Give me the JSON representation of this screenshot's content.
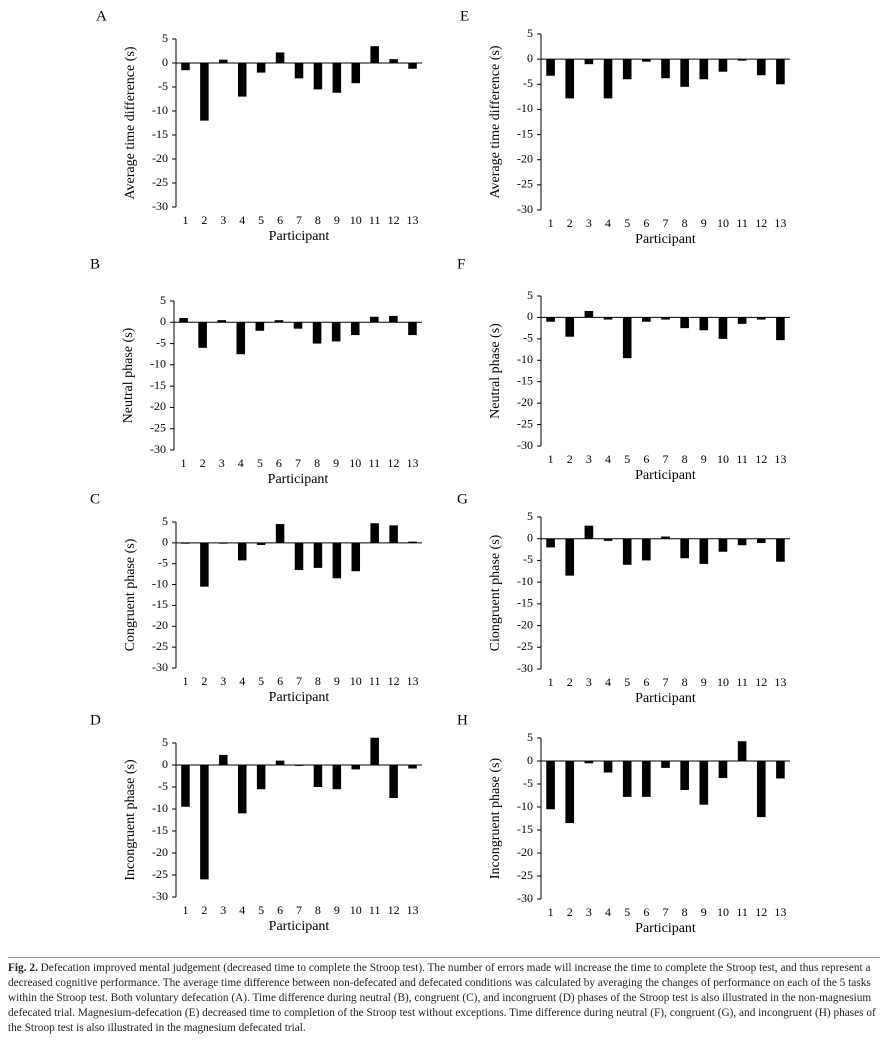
{
  "chart_data": [
    {
      "type": "bar",
      "label": "A",
      "ylabel": "Average time difference (s)",
      "xlabel": "Participant",
      "color": "#000000",
      "categories": [
        "1",
        "2",
        "3",
        "4",
        "5",
        "6",
        "7",
        "8",
        "9",
        "10",
        "11",
        "12",
        "13"
      ],
      "values": [
        -1.5,
        -12,
        0.7,
        -7,
        -2,
        2.2,
        -3.2,
        -5.5,
        -6.2,
        -4.2,
        3.5,
        0.8,
        -1.2
      ],
      "ylim": [
        -30,
        5
      ],
      "yticks": [
        -30,
        -25,
        -20,
        -15,
        -10,
        -5,
        0,
        5
      ]
    },
    {
      "type": "bar",
      "label": "E",
      "ylabel": "Average time difference (s)",
      "xlabel": "Participant",
      "color": "#000000",
      "categories": [
        "1",
        "2",
        "3",
        "4",
        "5",
        "6",
        "7",
        "8",
        "9",
        "10",
        "11",
        "12",
        "13"
      ],
      "values": [
        -3.3,
        -7.8,
        -1,
        -7.8,
        -4,
        -0.5,
        -3.8,
        -5.5,
        -4,
        -2.5,
        -0.3,
        -3.2,
        -5
      ],
      "ylim": [
        -30,
        5
      ],
      "yticks": [
        -30,
        -25,
        -20,
        -15,
        -10,
        -5,
        0,
        5
      ]
    },
    {
      "type": "bar",
      "label": "B",
      "ylabel": "Neutral phase (s)",
      "xlabel": "Participant",
      "color": "#000000",
      "categories": [
        "1",
        "2",
        "3",
        "4",
        "5",
        "6",
        "7",
        "8",
        "9",
        "10",
        "11",
        "12",
        "13"
      ],
      "values": [
        1,
        -6,
        0.5,
        -7.5,
        -2,
        0.5,
        -1.5,
        -5,
        -4.5,
        -3,
        1.3,
        1.5,
        -3
      ],
      "ylim": [
        -30,
        5
      ],
      "yticks": [
        -30,
        -25,
        -20,
        -15,
        -10,
        -5,
        0,
        5
      ]
    },
    {
      "type": "bar",
      "label": "F",
      "ylabel": "Neutral phase (s)",
      "xlabel": "Participant",
      "color": "#000000",
      "categories": [
        "1",
        "2",
        "3",
        "4",
        "5",
        "6",
        "7",
        "8",
        "9",
        "10",
        "11",
        "12",
        "13"
      ],
      "values": [
        -1,
        -4.5,
        1.5,
        -0.5,
        -9.5,
        -1,
        -0.5,
        -2.5,
        -3,
        -5,
        -1.5,
        -0.5,
        -5.3
      ],
      "ylim": [
        -30,
        5
      ],
      "yticks": [
        -30,
        -25,
        -20,
        -15,
        -10,
        -5,
        0,
        5
      ]
    },
    {
      "type": "bar",
      "label": "C",
      "ylabel": "Congruent phase (s)",
      "xlabel": "Participant",
      "color": "#000000",
      "categories": [
        "1",
        "2",
        "3",
        "4",
        "5",
        "6",
        "7",
        "8",
        "9",
        "10",
        "11",
        "12",
        "13"
      ],
      "values": [
        -0.2,
        -10.5,
        -0.2,
        -4.2,
        -0.5,
        4.5,
        -6.5,
        -6,
        -8.5,
        -6.8,
        4.7,
        4.2,
        0.3
      ],
      "ylim": [
        -30,
        5
      ],
      "yticks": [
        -30,
        -25,
        -20,
        -15,
        -10,
        -5,
        0,
        5
      ]
    },
    {
      "type": "bar",
      "label": "G",
      "ylabel": "Ciongruent phase (s)",
      "xlabel": "Participant",
      "color": "#000000",
      "categories": [
        "1",
        "2",
        "3",
        "4",
        "5",
        "6",
        "7",
        "8",
        "9",
        "10",
        "11",
        "12",
        "13"
      ],
      "values": [
        -2,
        -8.5,
        3,
        -0.5,
        -6,
        -5,
        0.5,
        -4.5,
        -5.8,
        -3,
        -1.5,
        -1,
        -5.3
      ],
      "ylim": [
        -30,
        5
      ],
      "yticks": [
        -30,
        -25,
        -20,
        -15,
        -10,
        -5,
        0,
        5
      ]
    },
    {
      "type": "bar",
      "label": "D",
      "ylabel": "Incongruent phase (s)",
      "xlabel": "Participant",
      "color": "#000000",
      "categories": [
        "1",
        "2",
        "3",
        "4",
        "5",
        "6",
        "7",
        "8",
        "9",
        "10",
        "11",
        "12",
        "13"
      ],
      "values": [
        -9.5,
        -26,
        2.3,
        -11,
        -5.5,
        1,
        -0.2,
        -5,
        -5.5,
        -1,
        6.2,
        -7.5,
        -0.8
      ],
      "ylim": [
        -30,
        5
      ],
      "yticks": [
        -30,
        -25,
        -20,
        -15,
        -10,
        -5,
        0,
        5
      ]
    },
    {
      "type": "bar",
      "label": "H",
      "ylabel": "Incongruent phase (s)",
      "xlabel": "Participant",
      "color": "#000000",
      "categories": [
        "1",
        "2",
        "3",
        "4",
        "5",
        "6",
        "7",
        "8",
        "9",
        "10",
        "11",
        "12",
        "13"
      ],
      "values": [
        -10.5,
        -13.5,
        -0.5,
        -2.5,
        -7.8,
        -7.8,
        -1.5,
        -6.3,
        -9.5,
        -3.7,
        4.3,
        -12.2,
        -3.8
      ],
      "ylim": [
        -30,
        5
      ],
      "yticks": [
        -30,
        -25,
        -20,
        -15,
        -10,
        -5,
        0,
        5
      ]
    }
  ],
  "caption": {
    "label": "Fig. 2.",
    "text": "Defecation improved mental judgement (decreased time to complete the Stroop test). The number of errors made will increase the time to complete the Stroop test, and thus represent a decreased cognitive performance. The average time difference between non-defecated and defecated conditions was calculated by averaging the changes of performance on each of the 5 tasks within the Stroop test. Both voluntary defecation (A). Time difference during neutral (B), congruent (C), and incongruent (D) phases of the Stroop test is also illustrated in the non-magnesium defecated trial. Magnesium-defecation (E) decreased time to completion of the Stroop test without exceptions. Time difference during neutral (F), congruent (G), and incongruent (H) phases of the Stroop test is also illustrated in the magnesium defecated trial."
  }
}
